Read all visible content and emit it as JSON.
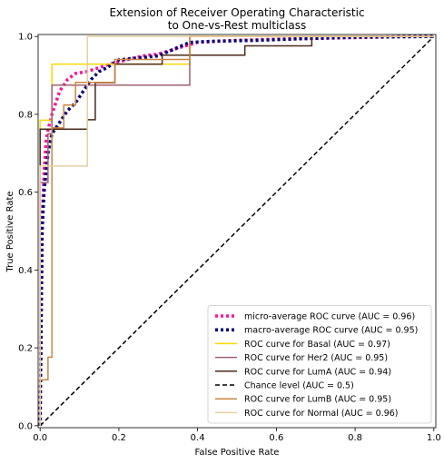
{
  "chart_data": {
    "type": "line",
    "title_lines": [
      "Extension of Receiver Operating Characteristic",
      "to One-vs-Rest multiclass"
    ],
    "xlabel": "False Positive Rate",
    "ylabel": "True Positive Rate",
    "xlim": [
      0.0,
      1.0
    ],
    "ylim": [
      0.0,
      1.0
    ],
    "xticks": [
      0.0,
      0.2,
      0.4,
      0.6,
      0.8,
      1.0
    ],
    "yticks": [
      0.0,
      0.2,
      0.4,
      0.6,
      0.8,
      1.0
    ],
    "xtick_labels": [
      "0.0",
      "0.2",
      "0.4",
      "0.6",
      "0.8",
      "1.0"
    ],
    "ytick_labels": [
      "0.0",
      "0.2",
      "0.4",
      "0.6",
      "0.8",
      "1.0"
    ],
    "grid": false,
    "legend_position": "lower-right",
    "series": [
      {
        "name": "micro-average ROC curve (AUC = 0.96)",
        "color": "#ff1493",
        "style": "dotted",
        "x": [
          0.0,
          0.003,
          0.006,
          0.01,
          0.015,
          0.02,
          0.03,
          0.05,
          0.07,
          0.09,
          0.12,
          0.15,
          0.18,
          0.22,
          0.26,
          0.3,
          0.35,
          0.4,
          0.5,
          0.6,
          0.7,
          0.8,
          0.9,
          1.0
        ],
        "y": [
          0.0,
          0.3,
          0.55,
          0.65,
          0.73,
          0.76,
          0.8,
          0.86,
          0.89,
          0.905,
          0.91,
          0.92,
          0.93,
          0.94,
          0.95,
          0.955,
          0.97,
          0.985,
          0.99,
          0.993,
          0.995,
          0.997,
          0.999,
          1.0
        ]
      },
      {
        "name": "macro-average ROC curve (AUC = 0.95)",
        "color": "#000080",
        "style": "dotted",
        "x": [
          0.0,
          0.005,
          0.01,
          0.02,
          0.03,
          0.05,
          0.07,
          0.09,
          0.11,
          0.13,
          0.15,
          0.17,
          0.2,
          0.25,
          0.3,
          0.38,
          0.45,
          0.55,
          0.69,
          0.8,
          1.0
        ],
        "y": [
          0.0,
          0.5,
          0.6,
          0.7,
          0.75,
          0.78,
          0.81,
          0.83,
          0.86,
          0.89,
          0.91,
          0.92,
          0.94,
          0.945,
          0.95,
          0.985,
          0.988,
          0.99,
          0.995,
          0.998,
          1.0
        ]
      },
      {
        "name": "ROC curve for Basal (AUC = 0.97)",
        "color": "#ffd700",
        "style": "solid",
        "x": [
          0.0,
          0.0,
          0.03,
          0.03,
          0.38,
          0.38,
          1.0
        ],
        "y": [
          0.0,
          0.785,
          0.785,
          0.929,
          0.929,
          1.0,
          1.0
        ]
      },
      {
        "name": "ROC curve for Her2 (AUC = 0.95)",
        "color": "#a06070",
        "style": "solid",
        "x": [
          0.0,
          0.0,
          0.02,
          0.02,
          0.03,
          0.03,
          0.38,
          0.38,
          1.0
        ],
        "y": [
          0.0,
          0.625,
          0.625,
          0.75,
          0.75,
          0.875,
          0.875,
          1.0,
          1.0
        ]
      },
      {
        "name": "ROC curve for LumA (AUC = 0.94)",
        "color": "#4a2a1a",
        "style": "solid",
        "x": [
          0.0,
          0.0,
          0.12,
          0.12,
          0.14,
          0.14,
          0.19,
          0.19,
          0.31,
          0.31,
          0.52,
          0.52,
          0.69,
          0.69,
          1.0
        ],
        "y": [
          0.0,
          0.762,
          0.762,
          0.786,
          0.786,
          0.881,
          0.881,
          0.929,
          0.929,
          0.952,
          0.952,
          0.976,
          0.976,
          1.0,
          1.0
        ]
      },
      {
        "name": "Chance level (AUC = 0.5)",
        "color": "#000000",
        "style": "dashed",
        "x": [
          0.0,
          1.0
        ],
        "y": [
          0.0,
          1.0
        ]
      },
      {
        "name": "ROC curve for LumB (AUC = 0.95)",
        "color": "#cd853f",
        "style": "solid",
        "x": [
          0.0,
          0.0,
          0.02,
          0.02,
          0.03,
          0.03,
          0.06,
          0.06,
          0.09,
          0.09,
          0.19,
          0.19,
          0.38,
          0.38,
          1.0
        ],
        "y": [
          0.0,
          0.118,
          0.118,
          0.176,
          0.176,
          0.765,
          0.765,
          0.824,
          0.824,
          0.882,
          0.882,
          0.941,
          0.941,
          1.0,
          1.0
        ]
      },
      {
        "name": "ROC curve for Normal (AUC = 0.96)",
        "color": "#e8cfa0",
        "style": "solid",
        "x": [
          0.0,
          0.0,
          0.03,
          0.03,
          0.12,
          0.12,
          1.0
        ],
        "y": [
          0.0,
          0.667,
          0.667,
          0.667,
          0.667,
          1.0,
          1.0
        ]
      }
    ]
  }
}
